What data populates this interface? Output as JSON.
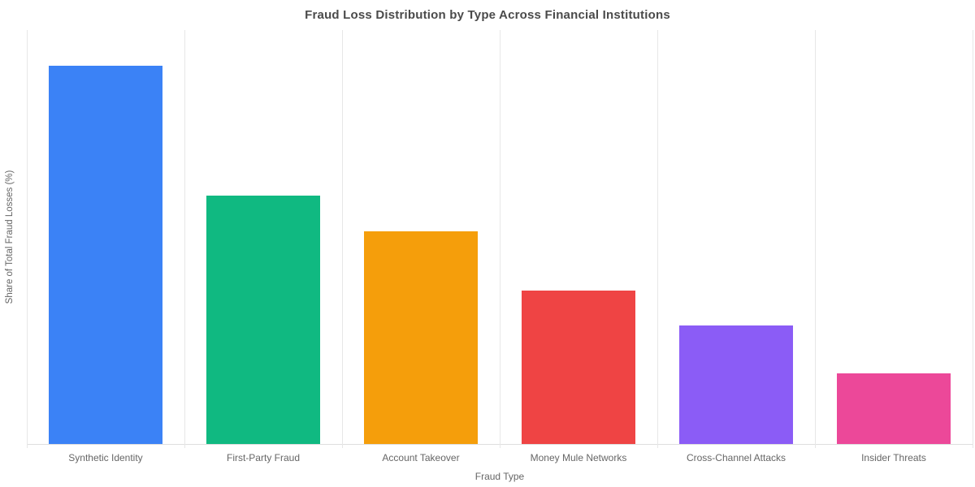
{
  "chart_data": {
    "type": "bar",
    "title": "Fraud Loss Distribution by Type Across Financial Institutions",
    "xlabel": "Fraud Type",
    "ylabel": "Share of Total Fraud Losses (%)",
    "categories": [
      "Synthetic Identity",
      "First-Party Fraud",
      "Account Takeover",
      "Money Mule Networks",
      "Cross-Channel Attacks",
      "Insider Threats"
    ],
    "values": [
      32,
      21,
      18,
      13,
      10,
      6
    ],
    "unit": "%",
    "ylim": [
      0,
      35
    ],
    "bar_colors": [
      "#3B82F6",
      "#10B981",
      "#F59E0B",
      "#EF4444",
      "#8B5CF6",
      "#EC4899"
    ],
    "grid": "vertical-category-separators-only",
    "y_tick_labels": "none",
    "legend": "none"
  }
}
